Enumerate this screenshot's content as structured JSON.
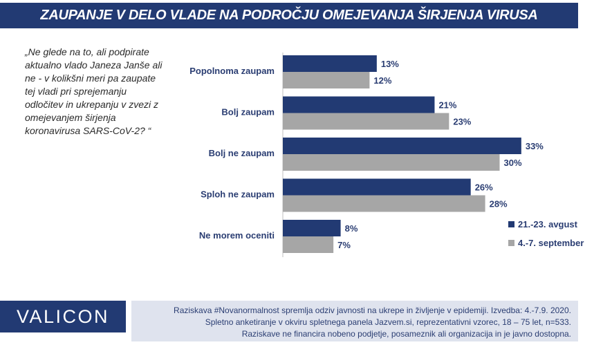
{
  "title": "ZAUPANJE V DELO VLADE NA PODROČJU OMEJEVANJA ŠIRJENJA VIRUSA",
  "question": "„Ne glede na to, ali podpirate aktualno vlado Janeza Janše ali ne - v kolikšni meri pa zaupate tej vladi pri sprejemanju odločitev in ukrepanju v zvezi z omejevanjem širjenja koronavirusa SARS-CoV-2? “",
  "chart_data": {
    "type": "bar",
    "orientation": "horizontal",
    "categories": [
      "Popolnoma zaupam",
      "Bolj zaupam",
      "Bolj ne zaupam",
      "Sploh ne zaupam",
      "Ne morem oceniti"
    ],
    "series": [
      {
        "name": "21.-23. avgust",
        "values": [
          13,
          21,
          33,
          26,
          8
        ],
        "labels": [
          "13%",
          "21%",
          "33%",
          "26%",
          "8%"
        ],
        "color": "#223a73"
      },
      {
        "name": "4.-7. september",
        "values": [
          12,
          23,
          30,
          28,
          7
        ],
        "labels": [
          "12%",
          "23%",
          "30%",
          "28%",
          "7%"
        ],
        "color": "#a6a6a6"
      }
    ],
    "xlim": [
      0,
      35
    ],
    "grid": false,
    "legend_position": "bottom-right"
  },
  "footer": {
    "logo": "VALICON",
    "lines": [
      "Raziskava #Novanormalnost spremlja odziv javnosti na ukrepe in življenje v epidemiji. Izvedba: 4.-7.9. 2020.",
      "Spletno anketiranje v okviru spletnega panela Jazvem.si, reprezentativni vzorec, 18 – 75 let, n=533.",
      "Raziskave ne financira nobeno podjetje, posameznik ali organizacija in je javno dostopna."
    ]
  },
  "colors": {
    "navy": "#223a73",
    "gray": "#a6a6a6",
    "footer_bg": "#dfe3ee",
    "text_dark": "#2a3d72"
  }
}
